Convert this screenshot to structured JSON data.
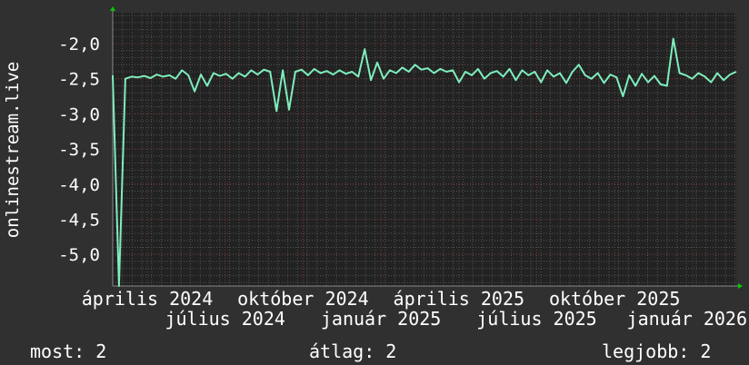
{
  "chart_data": {
    "type": "line",
    "ylabel": "onlinestream.live",
    "ylim": [
      -5.45,
      -1.56
    ],
    "yticks": [
      -2.0,
      -2.5,
      -3.0,
      -3.5,
      -4.0,
      -4.5,
      -5.0
    ],
    "ytick_labels": [
      "-2,0",
      "-2,5",
      "-3,0",
      "-3,5",
      "-4,0",
      "-4,5",
      "-5,0"
    ],
    "xtick_labels": [
      "április 2024",
      "július 2024",
      "október 2024",
      "január 2025",
      "április 2025",
      "július 2025",
      "október 2025",
      "január 2026"
    ],
    "grid": true,
    "colors": {
      "line": "#7eeebc",
      "background": "#303030",
      "plot": "#222222",
      "grid_minor": "#555555",
      "grid_major": "#7a3a3a",
      "arrow": "#00cc00"
    },
    "series": [
      {
        "values": [
          -2.45,
          -5.45,
          -2.5,
          -2.47,
          -2.48,
          -2.46,
          -2.49,
          -2.44,
          -2.47,
          -2.45,
          -2.5,
          -2.38,
          -2.45,
          -2.68,
          -2.44,
          -2.6,
          -2.42,
          -2.46,
          -2.43,
          -2.5,
          -2.42,
          -2.47,
          -2.38,
          -2.44,
          -2.37,
          -2.4,
          -2.96,
          -2.38,
          -2.94,
          -2.4,
          -2.37,
          -2.45,
          -2.36,
          -2.42,
          -2.39,
          -2.44,
          -2.38,
          -2.43,
          -2.4,
          -2.47,
          -2.08,
          -2.52,
          -2.27,
          -2.5,
          -2.38,
          -2.42,
          -2.34,
          -2.4,
          -2.3,
          -2.37,
          -2.35,
          -2.42,
          -2.36,
          -2.4,
          -2.38,
          -2.55,
          -2.4,
          -2.45,
          -2.36,
          -2.5,
          -2.42,
          -2.39,
          -2.47,
          -2.36,
          -2.52,
          -2.38,
          -2.45,
          -2.4,
          -2.55,
          -2.38,
          -2.47,
          -2.42,
          -2.56,
          -2.4,
          -2.3,
          -2.45,
          -2.5,
          -2.42,
          -2.56,
          -2.44,
          -2.48,
          -2.75,
          -2.45,
          -2.6,
          -2.43,
          -2.55,
          -2.46,
          -2.58,
          -2.6,
          -1.93,
          -2.42,
          -2.45,
          -2.5,
          -2.42,
          -2.47,
          -2.55,
          -2.42,
          -2.52,
          -2.44,
          -2.4
        ]
      }
    ]
  },
  "legend": {
    "current": "most: 2",
    "average": "átlag: 2",
    "max": "legjobb: 2"
  }
}
